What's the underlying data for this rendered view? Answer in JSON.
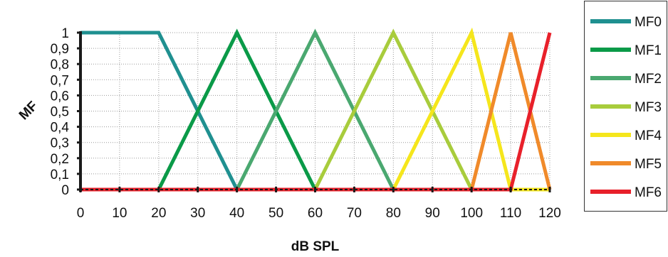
{
  "chart_data": {
    "type": "line",
    "title": "",
    "xlabel": "dB SPL",
    "ylabel": "MF",
    "xlim": [
      0,
      120
    ],
    "ylim": [
      0,
      1
    ],
    "x_ticks": [
      0,
      10,
      20,
      30,
      40,
      50,
      60,
      70,
      80,
      90,
      100,
      110,
      120
    ],
    "x_tick_labels": [
      "0",
      "10",
      "20",
      "30",
      "40",
      "50",
      "60",
      "70",
      "80",
      "90",
      "100",
      "110",
      "120"
    ],
    "y_ticks": [
      0,
      0.1,
      0.2,
      0.3,
      0.4,
      0.5,
      0.6,
      0.7,
      0.8,
      0.9,
      1
    ],
    "y_tick_labels": [
      "0",
      "0,1",
      "0,2",
      "0,3",
      "0,4",
      "0,5",
      "0,6",
      "0,7",
      "0,8",
      "0,9",
      "1"
    ],
    "grid": true,
    "legend_position": "right",
    "series": [
      {
        "name": "MF0",
        "color": "#1f9090",
        "x": [
          0,
          20,
          40,
          120
        ],
        "y": [
          1,
          1,
          0,
          0
        ]
      },
      {
        "name": "MF1",
        "color": "#0a9a48",
        "x": [
          0,
          20,
          40,
          60,
          120
        ],
        "y": [
          0,
          0,
          1,
          0,
          0
        ]
      },
      {
        "name": "MF2",
        "color": "#4aa870",
        "x": [
          0,
          40,
          60,
          80,
          120
        ],
        "y": [
          0,
          0,
          1,
          0,
          0
        ]
      },
      {
        "name": "MF3",
        "color": "#a8cc3c",
        "x": [
          0,
          60,
          80,
          100,
          120
        ],
        "y": [
          0,
          0,
          1,
          0,
          0
        ]
      },
      {
        "name": "MF4",
        "color": "#f5e61c",
        "x": [
          0,
          80,
          100,
          110,
          120
        ],
        "y": [
          0,
          0,
          1,
          0,
          0
        ]
      },
      {
        "name": "MF5",
        "color": "#f08a2a",
        "x": [
          0,
          100,
          110,
          120
        ],
        "y": [
          0,
          0,
          1,
          0
        ]
      },
      {
        "name": "MF6",
        "color": "#e8202a",
        "x": [
          0,
          110,
          120
        ],
        "y": [
          0,
          0,
          1
        ]
      }
    ]
  }
}
